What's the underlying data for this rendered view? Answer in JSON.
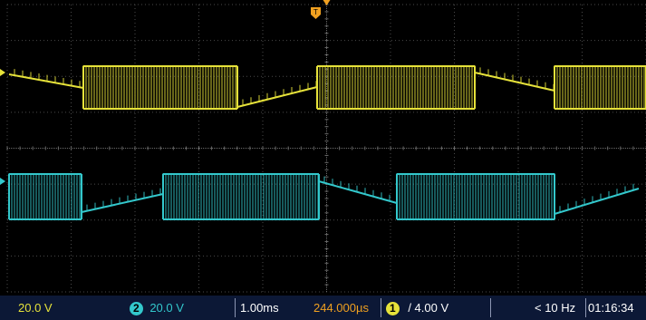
{
  "colors": {
    "ch1": "#e6e23a",
    "ch2": "#33c8cc",
    "grid": "#4a4a4a",
    "trigger": "#f0a020",
    "statusbar_bg": "#0c1836"
  },
  "status": {
    "ch1_scale": "20.0 V",
    "ch2_number": "2",
    "ch2_scale": "20.0 V",
    "timebase": "1.00ms",
    "trigger_position": "244.000µs",
    "trigger_channel": "1",
    "trigger_slope_icon": "rising-edge-icon",
    "trigger_level": "/ 4.00 V",
    "frequency": "< 10 Hz",
    "clock": "01:16:34"
  },
  "markers": {
    "trigger_marker_label": "T",
    "trigger_marker_icon": "trigger-position-marker-icon"
  },
  "waveforms": {
    "ch1": {
      "description_pattern": [
        "pwm",
        "ramp-down",
        "ramp-up",
        "pwm",
        "ramp-down"
      ],
      "phase_offset_divisions": 0
    },
    "ch2": {
      "description_pattern": [
        "pwm",
        "ramp-up",
        "pwm",
        "ramp-down",
        "pwm",
        "ramp-up"
      ],
      "phase_offset_divisions": 0
    }
  }
}
